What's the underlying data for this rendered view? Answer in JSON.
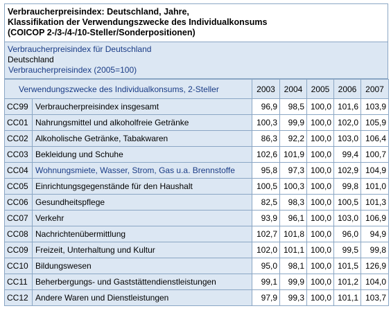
{
  "title_lines": [
    "Verbraucherpreisindex: Deutschland, Jahre,",
    "Klassifikation der Verwendungszwecke des Individualkonsums",
    "(COICOP 2-/3-/4-/10-Steller/Sonderpositionen)"
  ],
  "meta": {
    "line1": "Verbraucherpreisindex für Deutschland",
    "line2": "Deutschland",
    "line3": "Verbraucherpreisindex  (2005=100)"
  },
  "table": {
    "column_header": "Verwendungszwecke des Individualkonsums, 2-Steller",
    "years": [
      "2003",
      "2004",
      "2005",
      "2006",
      "2007"
    ],
    "rows": [
      {
        "code": "CC99",
        "label": "Verbraucherpreisindex insgesamt",
        "values": [
          "96,9",
          "98,5",
          "100,0",
          "101,6",
          "103,9"
        ]
      },
      {
        "code": "CC01",
        "label": "Nahrungsmittel und alkoholfreie Getränke",
        "values": [
          "100,3",
          "99,9",
          "100,0",
          "102,0",
          "105,9"
        ]
      },
      {
        "code": "CC02",
        "label": "Alkoholische Getränke, Tabakwaren",
        "values": [
          "86,3",
          "92,2",
          "100,0",
          "103,0",
          "106,4"
        ]
      },
      {
        "code": "CC03",
        "label": "Bekleidung und Schuhe",
        "values": [
          "102,6",
          "101,9",
          "100,0",
          "99,4",
          "100,7"
        ]
      },
      {
        "code": "CC04",
        "label": "Wohnungsmiete, Wasser, Strom, Gas u.a. Brennstoffe",
        "values": [
          "95,8",
          "97,3",
          "100,0",
          "102,9",
          "104,9"
        ]
      },
      {
        "code": "CC05",
        "label": "Einrichtungsgegenstände für den Haushalt",
        "values": [
          "100,5",
          "100,3",
          "100,0",
          "99,8",
          "101,0"
        ]
      },
      {
        "code": "CC06",
        "label": "Gesundheitspflege",
        "values": [
          "82,5",
          "98,3",
          "100,0",
          "100,5",
          "101,3"
        ]
      },
      {
        "code": "CC07",
        "label": "Verkehr",
        "values": [
          "93,9",
          "96,1",
          "100,0",
          "103,0",
          "106,9"
        ]
      },
      {
        "code": "CC08",
        "label": "Nachrichtenübermittlung",
        "values": [
          "102,7",
          "101,8",
          "100,0",
          "96,0",
          "94,9"
        ]
      },
      {
        "code": "CC09",
        "label": "Freizeit, Unterhaltung und Kultur",
        "values": [
          "102,0",
          "101,1",
          "100,0",
          "99,5",
          "99,8"
        ]
      },
      {
        "code": "CC10",
        "label": "Bildungswesen",
        "values": [
          "95,0",
          "98,1",
          "100,0",
          "101,5",
          "126,9"
        ]
      },
      {
        "code": "CC11",
        "label": "Beherbergungs- und Gaststättendienstleistungen",
        "values": [
          "99,1",
          "99,9",
          "100,0",
          "101,2",
          "104,0"
        ]
      },
      {
        "code": "CC12",
        "label": "Andere Waren und Dienstleistungen",
        "values": [
          "97,9",
          "99,3",
          "100,0",
          "101,1",
          "103,7"
        ]
      }
    ]
  },
  "colors": {
    "header_bg": "#dce7f3",
    "border": "#8aa6c4",
    "link_blue": "#1a3c86"
  }
}
